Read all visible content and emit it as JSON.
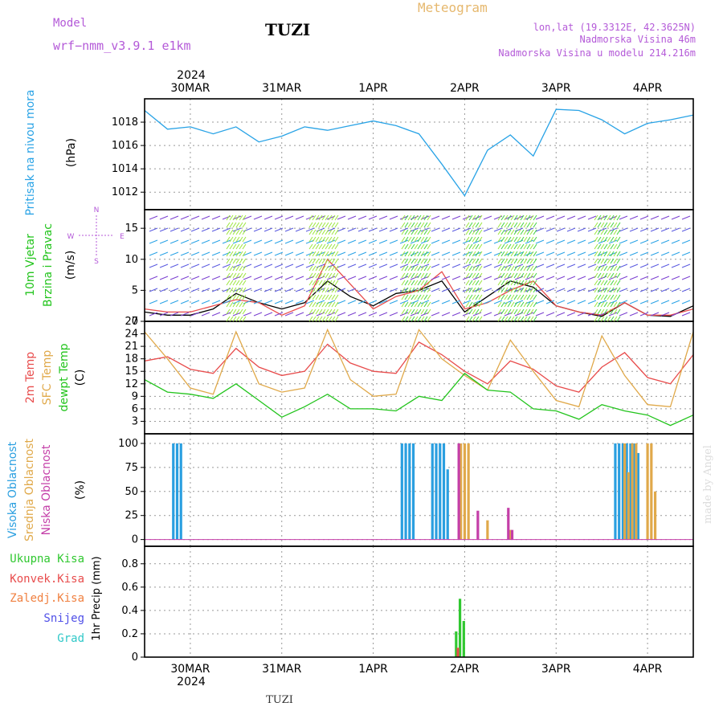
{
  "header": {
    "model_label": "Model",
    "model_name": "wrf−nmm_v3.9.1  e1km",
    "station": "TUZI",
    "product": "Meteogram",
    "lonlat": "lon,lat (19.3312E, 42.3625N)",
    "elevation": "Nadmorska Visina 46m",
    "model_elevation": "Nadmorska Visina u modelu 214.216m",
    "footer_station": "TUZI",
    "watermark": "made by Angel",
    "year": "2024"
  },
  "colors": {
    "pressure": "#29a3e6",
    "temp2m": "#e84c4c",
    "sfc_temp": "#e0a94a",
    "dewpt": "#22c41c",
    "cloud_high": "#2a9fe0",
    "cloud_mid": "#e0a94a",
    "cloud_low": "#c43fa8",
    "precip_total": "#30c830",
    "precip_conv": "#e84c4c",
    "header_purple": "#b45ad8",
    "header_orange": "#e6b86e"
  },
  "chart_data": {
    "x_axis": {
      "type": "date",
      "tick_labels": [
        "30MAR",
        "31MAR",
        "1APR",
        "2APR",
        "3APR",
        "4APR"
      ],
      "ticks": [
        "2024-03-30",
        "2024-03-31",
        "2024-04-01",
        "2024-04-02",
        "2024-04-03",
        "2024-04-04"
      ],
      "range": [
        "2024-03-29T12:00",
        "2024-04-04T12:00"
      ],
      "year": "2024"
    },
    "panels": [
      {
        "type": "line",
        "ylabel": [
          "Pritisak na nivou mora",
          "(hPa)"
        ],
        "yticks": [
          1012,
          1014,
          1016,
          1018
        ],
        "ylim": [
          1010.5,
          1020
        ],
        "grid": true,
        "series": [
          {
            "name": "",
            "color_key": "pressure",
            "x": [
              "2024-03-29T12:00",
              "2024-03-29T18:00",
              "2024-03-30T00:00",
              "2024-03-30T06:00",
              "2024-03-30T12:00",
              "2024-03-30T18:00",
              "2024-03-31T00:00",
              "2024-03-31T06:00",
              "2024-03-31T12:00",
              "2024-03-31T18:00",
              "2024-04-01T00:00",
              "2024-04-01T06:00",
              "2024-04-01T12:00",
              "2024-04-01T18:00",
              "2024-04-02T00:00",
              "2024-04-02T06:00",
              "2024-04-02T12:00",
              "2024-04-02T18:00",
              "2024-04-03T00:00",
              "2024-04-03T06:00",
              "2024-04-03T12:00",
              "2024-04-03T18:00",
              "2024-04-04T00:00",
              "2024-04-04T06:00",
              "2024-04-04T12:00"
            ],
            "y": [
              1019.0,
              1017.4,
              1017.6,
              1017.0,
              1017.6,
              1016.3,
              1016.8,
              1017.6,
              1017.3,
              1017.7,
              1018.1,
              1017.7,
              1017.0,
              1014.4,
              1011.7,
              1015.6,
              1016.9,
              1015.1,
              1019.1,
              1019.0,
              1018.2,
              1017.0,
              1017.9,
              1018.2,
              1018.6
            ]
          }
        ]
      },
      {
        "type": "line",
        "ylabel": [
          "10m Vjetar",
          "Brzina i Pravac",
          "(m/s)"
        ],
        "compass_labels": [
          "N",
          "W",
          "E",
          "S"
        ],
        "yticks": [
          0,
          5,
          10,
          15
        ],
        "ylim": [
          0,
          18
        ],
        "grid": true,
        "series": [
          {
            "name": "",
            "color": "#000000",
            "x": [
              "2024-03-29T12:00",
              "2024-03-29T18:00",
              "2024-03-30T00:00",
              "2024-03-30T06:00",
              "2024-03-30T12:00",
              "2024-03-30T18:00",
              "2024-03-31T00:00",
              "2024-03-31T06:00",
              "2024-03-31T12:00",
              "2024-03-31T18:00",
              "2024-04-01T00:00",
              "2024-04-01T06:00",
              "2024-04-01T12:00",
              "2024-04-01T18:00",
              "2024-04-02T00:00",
              "2024-04-02T06:00",
              "2024-04-02T12:00",
              "2024-04-02T18:00",
              "2024-04-03T00:00",
              "2024-04-03T06:00",
              "2024-04-03T12:00",
              "2024-04-03T18:00",
              "2024-04-04T00:00",
              "2024-04-04T06:00",
              "2024-04-04T12:00"
            ],
            "y": [
              1.5,
              1.0,
              1.0,
              2.0,
              4.5,
              3.0,
              2.0,
              3.0,
              6.5,
              4.0,
              2.5,
              4.5,
              5.0,
              6.5,
              1.5,
              4.0,
              6.5,
              5.5,
              2.5,
              1.5,
              0.8,
              3.0,
              1.0,
              0.8,
              2.5
            ]
          },
          {
            "name": "",
            "color": "#e84c4c",
            "x": [
              "2024-03-29T12:00",
              "2024-03-29T18:00",
              "2024-03-30T00:00",
              "2024-03-30T06:00",
              "2024-03-30T12:00",
              "2024-03-30T18:00",
              "2024-03-31T00:00",
              "2024-03-31T06:00",
              "2024-03-31T12:00",
              "2024-03-31T18:00",
              "2024-04-01T00:00",
              "2024-04-01T06:00",
              "2024-04-01T12:00",
              "2024-04-01T18:00",
              "2024-04-02T00:00",
              "2024-04-02T06:00",
              "2024-04-02T12:00",
              "2024-04-02T18:00",
              "2024-04-03T00:00",
              "2024-04-03T06:00",
              "2024-04-03T12:00",
              "2024-04-03T18:00",
              "2024-04-04T00:00",
              "2024-04-04T06:00",
              "2024-04-04T12:00"
            ],
            "y": [
              2.0,
              1.5,
              1.5,
              2.5,
              3.5,
              3.0,
              1.0,
              2.5,
              10.0,
              6.0,
              2.0,
              4.0,
              5.0,
              8.0,
              2.0,
              3.0,
              5.0,
              6.5,
              2.5,
              1.5,
              1.0,
              3.0,
              1.0,
              1.0,
              2.0
            ]
          }
        ]
      },
      {
        "type": "line",
        "ylabel": [
          "2m Temp",
          "SFC Temp",
          "dewpt Temp",
          "(C)"
        ],
        "yticks": [
          3,
          6,
          9,
          12,
          15,
          18,
          21,
          24,
          27
        ],
        "ylim": [
          0,
          27
        ],
        "grid": true,
        "series": [
          {
            "name": "2m Temp",
            "color_key": "temp2m",
            "x": [
              "2024-03-29T12:00",
              "2024-03-29T18:00",
              "2024-03-30T00:00",
              "2024-03-30T06:00",
              "2024-03-30T12:00",
              "2024-03-30T18:00",
              "2024-03-31T00:00",
              "2024-03-31T06:00",
              "2024-03-31T12:00",
              "2024-03-31T18:00",
              "2024-04-01T00:00",
              "2024-04-01T06:00",
              "2024-04-01T12:00",
              "2024-04-01T18:00",
              "2024-04-02T00:00",
              "2024-04-02T06:00",
              "2024-04-02T12:00",
              "2024-04-02T18:00",
              "2024-04-03T00:00",
              "2024-04-03T06:00",
              "2024-04-03T12:00",
              "2024-04-03T18:00",
              "2024-04-04T00:00",
              "2024-04-04T06:00",
              "2024-04-04T12:00"
            ],
            "y": [
              17.5,
              18.5,
              15.5,
              14.5,
              20.5,
              16.0,
              14.0,
              15.0,
              21.5,
              17.0,
              15.0,
              14.5,
              22.0,
              19.0,
              15.0,
              12.0,
              17.5,
              15.5,
              11.5,
              10.0,
              16.0,
              19.5,
              13.5,
              12.0,
              19.0
            ]
          },
          {
            "name": "SFC Temp",
            "color_key": "sfc_temp",
            "x": [
              "2024-03-29T12:00",
              "2024-03-29T18:00",
              "2024-03-30T00:00",
              "2024-03-30T06:00",
              "2024-03-30T12:00",
              "2024-03-30T18:00",
              "2024-03-31T00:00",
              "2024-03-31T06:00",
              "2024-03-31T12:00",
              "2024-03-31T18:00",
              "2024-04-01T00:00",
              "2024-04-01T06:00",
              "2024-04-01T12:00",
              "2024-04-01T18:00",
              "2024-04-02T00:00",
              "2024-04-02T06:00",
              "2024-04-02T12:00",
              "2024-04-02T18:00",
              "2024-04-03T00:00",
              "2024-04-03T06:00",
              "2024-04-03T12:00",
              "2024-04-03T18:00",
              "2024-04-04T00:00",
              "2024-04-04T06:00",
              "2024-04-04T12:00"
            ],
            "y": [
              24.5,
              18.0,
              11.0,
              9.5,
              24.5,
              12.0,
              10.0,
              11.0,
              25.0,
              13.0,
              9.0,
              9.5,
              25.0,
              18.0,
              14.0,
              10.5,
              22.5,
              15.0,
              8.0,
              6.5,
              23.5,
              14.0,
              7.0,
              6.5,
              24.5
            ]
          },
          {
            "name": "dewpt Temp",
            "color_key": "dewpt",
            "x": [
              "2024-03-29T12:00",
              "2024-03-29T18:00",
              "2024-03-30T00:00",
              "2024-03-30T06:00",
              "2024-03-30T12:00",
              "2024-03-30T18:00",
              "2024-03-31T00:00",
              "2024-03-31T06:00",
              "2024-03-31T12:00",
              "2024-03-31T18:00",
              "2024-04-01T00:00",
              "2024-04-01T06:00",
              "2024-04-01T12:00",
              "2024-04-01T18:00",
              "2024-04-02T00:00",
              "2024-04-02T06:00",
              "2024-04-02T12:00",
              "2024-04-02T18:00",
              "2024-04-03T00:00",
              "2024-04-03T06:00",
              "2024-04-03T12:00",
              "2024-04-03T18:00",
              "2024-04-04T00:00",
              "2024-04-04T06:00",
              "2024-04-04T12:00"
            ],
            "y": [
              13.0,
              10.0,
              9.5,
              8.5,
              12.0,
              8.0,
              4.0,
              6.5,
              9.5,
              6.0,
              6.0,
              5.5,
              9.0,
              8.0,
              14.5,
              10.5,
              10.0,
              6.0,
              5.5,
              3.5,
              7.0,
              5.5,
              4.5,
              2.0,
              4.5
            ]
          }
        ]
      },
      {
        "type": "bar",
        "ylabel": [
          "Visoka Oblacnost",
          "Srednja Oblacnost",
          "Niska Oblacnost",
          "(%)"
        ],
        "yticks": [
          0,
          25,
          50,
          75,
          100
        ],
        "ylim": [
          -7,
          110
        ],
        "grid": true,
        "series": [
          {
            "name": "Visoka Oblacnost",
            "color_key": "cloud_high",
            "x": [
              "2024-03-29T20:00",
              "2024-03-29T21:00",
              "2024-03-29T22:00",
              "2024-04-01T08:00",
              "2024-04-01T09:00",
              "2024-04-01T10:00",
              "2024-04-01T11:00",
              "2024-04-01T16:00",
              "2024-04-01T17:00",
              "2024-04-01T18:00",
              "2024-04-01T19:00",
              "2024-04-01T20:00",
              "2024-04-03T16:00",
              "2024-04-03T17:00",
              "2024-04-03T18:00",
              "2024-04-03T19:00",
              "2024-04-03T20:00",
              "2024-04-03T21:00",
              "2024-04-03T22:00"
            ],
            "y": [
              100,
              100,
              100,
              100,
              100,
              100,
              100,
              100,
              100,
              100,
              100,
              73,
              100,
              100,
              100,
              100,
              100,
              100,
              90
            ]
          },
          {
            "name": "Srednja Oblacnost",
            "color_key": "cloud_mid",
            "x": [
              "2024-04-01T23:00",
              "2024-04-02T00:00",
              "2024-04-02T01:00",
              "2024-04-02T06:00",
              "2024-04-02T12:00",
              "2024-04-03T18:00",
              "2024-04-03T19:00",
              "2024-04-03T20:00",
              "2024-04-03T21:00",
              "2024-04-04T00:00",
              "2024-04-04T01:00",
              "2024-04-04T02:00"
            ],
            "y": [
              100,
              100,
              100,
              20,
              10,
              100,
              70,
              100,
              100,
              100,
              100,
              50
            ]
          },
          {
            "name": "Niska Oblacnost",
            "color_key": "cloud_low",
            "x": [
              "2024-04-01T22:00",
              "2024-04-02T03:00",
              "2024-04-02T11:00",
              "2024-04-02T12:00"
            ],
            "y": [
              100,
              30,
              33,
              10
            ]
          }
        ]
      },
      {
        "type": "bar",
        "ylabel": [
          "1hr Precip (mm)"
        ],
        "legend": [
          "Ukupna Kisa",
          "Konvek.Kisa",
          "Zaledj.Kisa",
          "Snijeg",
          "Grad"
        ],
        "yticks": [
          0,
          0.2,
          0.4,
          0.6,
          0.8
        ],
        "ylim": [
          0,
          0.95
        ],
        "grid": true,
        "series": [
          {
            "name": "Ukupna Kisa",
            "color_key": "precip_total",
            "x": [
              "2024-04-01T22:00",
              "2024-04-01T23:00",
              "2024-04-02T00:00"
            ],
            "y": [
              0.22,
              0.5,
              0.31
            ]
          },
          {
            "name": "Konvek.Kisa",
            "color_key": "precip_conv",
            "x": [
              "2024-04-01T22:00"
            ],
            "y": [
              0.08
            ]
          }
        ]
      }
    ]
  }
}
